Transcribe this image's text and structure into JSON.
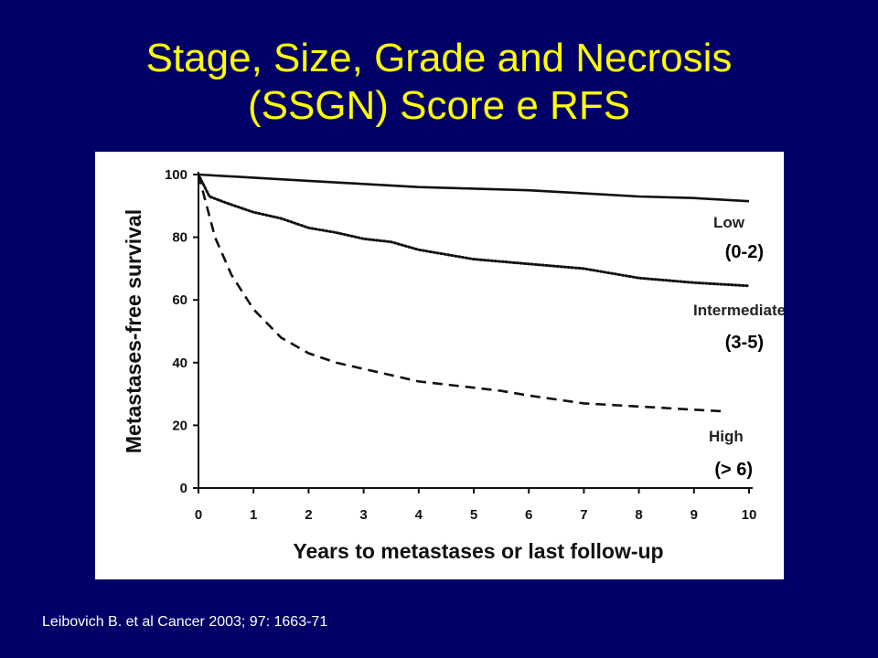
{
  "slide": {
    "title_line1": "Stage, Size, Grade and Necrosis",
    "title_line2": "(SSGN) Score e RFS",
    "citation": "Leibovich B. et al Cancer 2003; 97: 1663-71",
    "colors": {
      "background": "#000066",
      "title": "#ffff00",
      "citation": "#ffffff",
      "panel": "#ffffff"
    }
  },
  "chart_data": {
    "type": "line",
    "title": "",
    "xlabel": "Years to metastases or last follow-up",
    "ylabel": "Metastases-free survival",
    "xlim": [
      0,
      10
    ],
    "ylim": [
      0,
      100
    ],
    "x_ticks": [
      0,
      1,
      2,
      3,
      4,
      5,
      6,
      7,
      8,
      9,
      10
    ],
    "y_ticks": [
      0,
      20,
      40,
      60,
      80,
      100
    ],
    "grid": false,
    "legend": "none",
    "series": [
      {
        "name": "Low",
        "score": "(0-2)",
        "line_style": "solid",
        "x": [
          0,
          1,
          2,
          3,
          4,
          5,
          6,
          7,
          8,
          9,
          10
        ],
        "values": [
          100,
          99,
          98,
          97,
          96,
          95.5,
          95,
          94,
          93,
          92.5,
          91.5
        ]
      },
      {
        "name": "Intermediate",
        "score": "(3-5)",
        "line_style": "dotted",
        "x": [
          0,
          0.2,
          0.5,
          1,
          1.5,
          2,
          2.5,
          3,
          3.5,
          4,
          5,
          6,
          7,
          8,
          9,
          10
        ],
        "values": [
          100,
          93,
          91,
          88,
          86,
          83,
          81.5,
          79.5,
          78.5,
          76,
          73,
          71.5,
          70,
          67,
          65.5,
          64.5
        ]
      },
      {
        "name": "High",
        "score": "(> 6)",
        "line_style": "dashed",
        "x": [
          0,
          0.3,
          0.6,
          1,
          1.5,
          2,
          2.5,
          3,
          3.5,
          4,
          4.5,
          5,
          5.5,
          6,
          7,
          8,
          9,
          9.5
        ],
        "values": [
          100,
          80,
          68,
          57,
          48,
          43,
          40,
          38,
          36,
          34,
          33,
          32,
          31,
          29.5,
          27,
          26,
          25,
          24.5
        ]
      }
    ]
  }
}
